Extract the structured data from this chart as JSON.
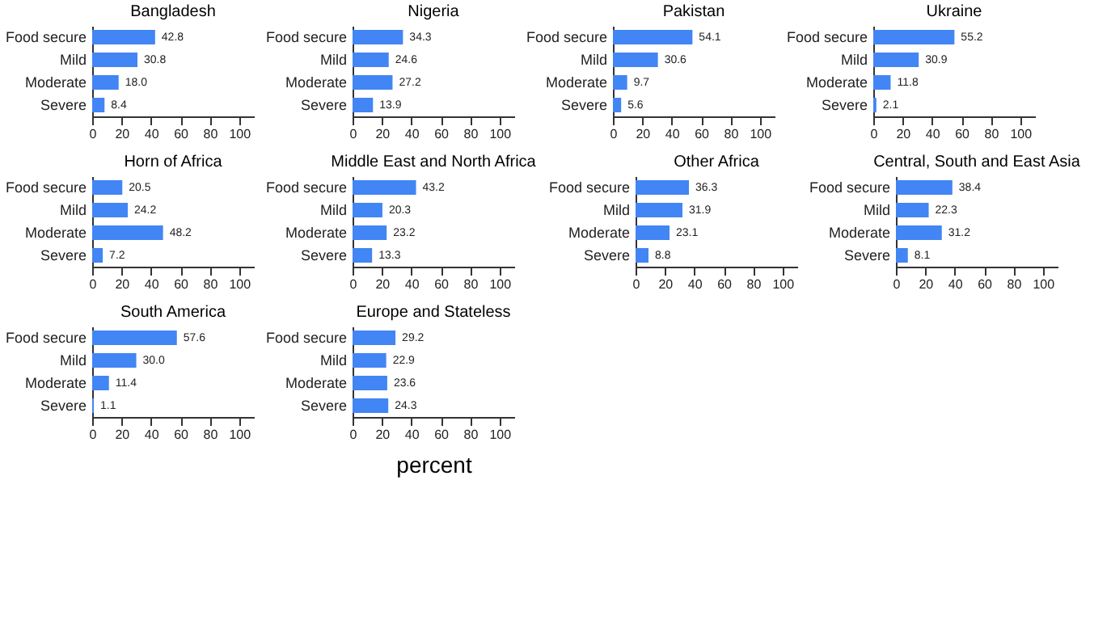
{
  "chart_data": [
    {
      "type": "bar",
      "orientation": "horizontal",
      "title": "Bangladesh",
      "categories": [
        "Food secure",
        "Mild",
        "Moderate",
        "Severe"
      ],
      "values": [
        42.8,
        30.8,
        18.0,
        8.4
      ],
      "value_labels": [
        "42.8",
        "30.8",
        "18.0",
        "8.4"
      ],
      "color": "#4285f4",
      "xlim": [
        0,
        110
      ],
      "xticks": [
        0,
        20,
        40,
        60,
        80,
        100
      ]
    },
    {
      "type": "bar",
      "orientation": "horizontal",
      "title": "Nigeria",
      "categories": [
        "Food secure",
        "Mild",
        "Moderate",
        "Severe"
      ],
      "values": [
        34.3,
        24.6,
        27.2,
        13.9
      ],
      "value_labels": [
        "34.3",
        "24.6",
        "27.2",
        "13.9"
      ],
      "color": "#4285f4",
      "xlim": [
        0,
        110
      ],
      "xticks": [
        0,
        20,
        40,
        60,
        80,
        100
      ]
    },
    {
      "type": "bar",
      "orientation": "horizontal",
      "title": "Pakistan",
      "categories": [
        "Food secure",
        "Mild",
        "Moderate",
        "Severe"
      ],
      "values": [
        54.1,
        30.6,
        9.7,
        5.6
      ],
      "value_labels": [
        "54.1",
        "30.6",
        "9.7",
        "5.6"
      ],
      "color": "#4285f4",
      "xlim": [
        0,
        110
      ],
      "xticks": [
        0,
        20,
        40,
        60,
        80,
        100
      ]
    },
    {
      "type": "bar",
      "orientation": "horizontal",
      "title": "Ukraine",
      "categories": [
        "Food secure",
        "Mild",
        "Moderate",
        "Severe"
      ],
      "values": [
        55.2,
        30.9,
        11.8,
        2.1
      ],
      "value_labels": [
        "55.2",
        "30.9",
        "11.8",
        "2.1"
      ],
      "color": "#4285f4",
      "xlim": [
        0,
        110
      ],
      "xticks": [
        0,
        20,
        40,
        60,
        80,
        100
      ]
    },
    {
      "type": "bar",
      "orientation": "horizontal",
      "title": "Horn of Africa",
      "categories": [
        "Food secure",
        "Mild",
        "Moderate",
        "Severe"
      ],
      "values": [
        20.5,
        24.2,
        48.2,
        7.2
      ],
      "value_labels": [
        "20.5",
        "24.2",
        "48.2",
        "7.2"
      ],
      "color": "#4285f4",
      "xlim": [
        0,
        110
      ],
      "xticks": [
        0,
        20,
        40,
        60,
        80,
        100
      ]
    },
    {
      "type": "bar",
      "orientation": "horizontal",
      "title": "Middle East and North Africa",
      "categories": [
        "Food secure",
        "Mild",
        "Moderate",
        "Severe"
      ],
      "values": [
        43.2,
        20.3,
        23.2,
        13.3
      ],
      "value_labels": [
        "43.2",
        "20.3",
        "23.2",
        "13.3"
      ],
      "color": "#4285f4",
      "xlim": [
        0,
        110
      ],
      "xticks": [
        0,
        20,
        40,
        60,
        80,
        100
      ]
    },
    {
      "type": "bar",
      "orientation": "horizontal",
      "title": "Other Africa",
      "categories": [
        "Food secure",
        "Mild",
        "Moderate",
        "Severe"
      ],
      "values": [
        36.3,
        31.9,
        23.1,
        8.8
      ],
      "value_labels": [
        "36.3",
        "31.9",
        "23.1",
        "8.8"
      ],
      "color": "#4285f4",
      "xlim": [
        0,
        110
      ],
      "xticks": [
        0,
        20,
        40,
        60,
        80,
        100
      ]
    },
    {
      "type": "bar",
      "orientation": "horizontal",
      "title": "Central, South and East Asia",
      "categories": [
        "Food secure",
        "Mild",
        "Moderate",
        "Severe"
      ],
      "values": [
        38.4,
        22.3,
        31.2,
        8.1
      ],
      "value_labels": [
        "38.4",
        "22.3",
        "31.2",
        "8.1"
      ],
      "color": "#4285f4",
      "xlim": [
        0,
        110
      ],
      "xticks": [
        0,
        20,
        40,
        60,
        80,
        100
      ]
    },
    {
      "type": "bar",
      "orientation": "horizontal",
      "title": "South America",
      "categories": [
        "Food secure",
        "Mild",
        "Moderate",
        "Severe"
      ],
      "values": [
        57.6,
        30.0,
        11.4,
        1.1
      ],
      "value_labels": [
        "57.6",
        "30.0",
        "11.4",
        "1.1"
      ],
      "color": "#4285f4",
      "xlim": [
        0,
        110
      ],
      "xticks": [
        0,
        20,
        40,
        60,
        80,
        100
      ]
    },
    {
      "type": "bar",
      "orientation": "horizontal",
      "title": "Europe and Stateless",
      "categories": [
        "Food secure",
        "Mild",
        "Moderate",
        "Severe"
      ],
      "values": [
        29.2,
        22.9,
        23.6,
        24.3
      ],
      "value_labels": [
        "29.2",
        "22.9",
        "23.6",
        "24.3"
      ],
      "color": "#4285f4",
      "xlim": [
        0,
        110
      ],
      "xticks": [
        0,
        20,
        40,
        60,
        80,
        100
      ],
      "xlabel": "percent"
    }
  ]
}
